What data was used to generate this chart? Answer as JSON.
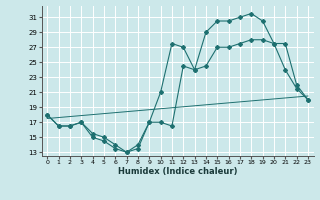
{
  "xlabel": "Humidex (Indice chaleur)",
  "bg_color": "#cce8ea",
  "grid_color": "#ffffff",
  "line_color": "#1e7070",
  "xlim": [
    -0.5,
    23.5
  ],
  "ylim": [
    12.5,
    32.5
  ],
  "yticks": [
    13,
    15,
    17,
    19,
    21,
    23,
    25,
    27,
    29,
    31
  ],
  "xticks": [
    0,
    1,
    2,
    3,
    4,
    5,
    6,
    7,
    8,
    9,
    10,
    11,
    12,
    13,
    14,
    15,
    16,
    17,
    18,
    19,
    20,
    21,
    22,
    23
  ],
  "curve1_x": [
    0,
    1,
    2,
    3,
    4,
    5,
    6,
    7,
    8,
    9,
    10,
    11,
    12,
    13,
    14,
    15,
    16,
    17,
    18,
    19,
    20,
    21,
    22,
    23
  ],
  "curve1_y": [
    18,
    16.5,
    16.5,
    17,
    15,
    14.5,
    13.5,
    13,
    13.5,
    17,
    17,
    16.5,
    24.5,
    24,
    29,
    30.5,
    30.5,
    31,
    31.5,
    30.5,
    27.5,
    24,
    21.5,
    20
  ],
  "curve2_x": [
    0,
    1,
    2,
    3,
    4,
    5,
    6,
    7,
    8,
    9,
    10,
    11,
    12,
    13,
    14,
    15,
    16,
    17,
    18,
    19,
    20,
    21,
    22,
    23
  ],
  "curve2_y": [
    18,
    16.5,
    16.5,
    17,
    15.5,
    15,
    14,
    13,
    14,
    17,
    21,
    27.5,
    27,
    24,
    24.5,
    27,
    27,
    27.5,
    28,
    28,
    27.5,
    27.5,
    22,
    20
  ],
  "curve3_x": [
    0,
    23
  ],
  "curve3_y": [
    17.5,
    20.5
  ]
}
